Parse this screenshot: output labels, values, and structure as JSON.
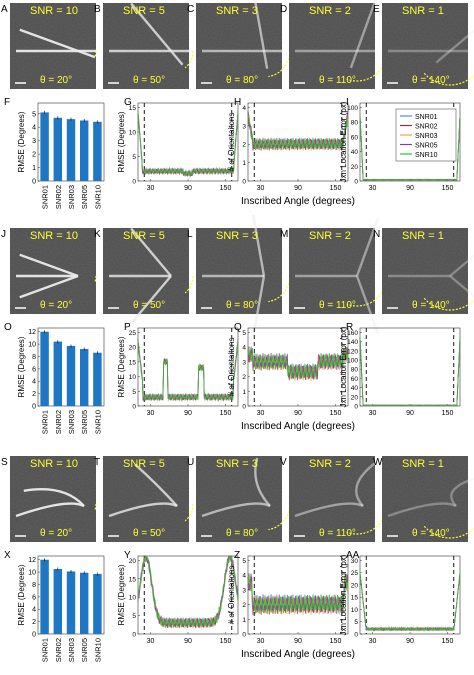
{
  "rows": [
    {
      "panel_letters": [
        "A",
        "B",
        "C",
        "D",
        "E"
      ],
      "snr_labels": [
        "SNR = 10",
        "SNR = 5",
        "SNR = 3",
        "SNR = 2",
        "SNR = 1"
      ],
      "theta_labels": [
        "θ = 20°",
        "θ = 50°",
        "θ = 80°",
        "θ = 110°",
        "θ = 140°"
      ],
      "bar_letter": "F",
      "plot_letters": [
        "G",
        "H",
        "I"
      ],
      "bar_ylabel": "RMSE (Degrees)",
      "bar_yticks": [
        "0",
        "1",
        "2",
        "3",
        "4",
        "5"
      ],
      "bar_ylim": [
        0,
        5.8
      ],
      "bar_values": [
        5.1,
        4.7,
        4.6,
        4.5,
        4.4
      ],
      "show_legend": true
    },
    {
      "panel_letters": [
        "J",
        "K",
        "L",
        "M",
        "N"
      ],
      "snr_labels": [
        "SNR = 10",
        "SNR = 5",
        "SNR = 3",
        "SNR = 2",
        "SNR = 1"
      ],
      "theta_labels": [
        "θ = 20°",
        "θ = 50°",
        "θ = 80°",
        "θ = 110°",
        "θ = 140°"
      ],
      "bar_letter": "O",
      "plot_letters": [
        "P",
        "Q",
        "R"
      ],
      "bar_ylabel": "RMSE (Degrees)",
      "bar_yticks": [
        "0",
        "2",
        "4",
        "6",
        "8",
        "10",
        "12"
      ],
      "bar_ylim": [
        0,
        12.6
      ],
      "bar_values": [
        12.0,
        10.4,
        9.7,
        9.2,
        8.6
      ],
      "show_legend": false
    },
    {
      "panel_letters": [
        "S",
        "T",
        "U",
        "V",
        "W"
      ],
      "snr_labels": [
        "SNR = 10",
        "SNR = 5",
        "SNR = 3",
        "SNR = 2",
        "SNR = 1"
      ],
      "theta_labels": [
        "θ = 20°",
        "θ = 50°",
        "θ = 80°",
        "θ = 110°",
        "θ = 140°"
      ],
      "bar_letter": "X",
      "plot_letters": [
        "Y",
        "Z",
        "AA"
      ],
      "bar_ylabel": "RMSE (Degrees)",
      "bar_yticks": [
        "0",
        "2",
        "4",
        "6",
        "8",
        "10",
        "12"
      ],
      "bar_ylim": [
        0,
        12.6
      ],
      "bar_values": [
        12.0,
        10.5,
        10.1,
        9.9,
        9.7
      ],
      "show_legend": false
    }
  ],
  "bar_categories": [
    "SNR01",
    "SNR02",
    "SNR03",
    "SNR05",
    "SNR10"
  ],
  "line_ylabels": [
    "RMSE (Degrees)",
    "# of Orientaitons",
    "Jxn Location Error (px)"
  ],
  "line_yticks": [
    [
      [
        "0",
        "5",
        "10",
        "15"
      ],
      [
        "0",
        "1",
        "2",
        "3",
        "4"
      ],
      [
        "0",
        "20",
        "40",
        "60",
        "80",
        "100"
      ]
    ],
    [
      [
        "0",
        "5",
        "10",
        "15",
        "20",
        "25"
      ],
      [
        "0",
        "1",
        "2",
        "3",
        "4",
        "5"
      ],
      [
        "0",
        "20",
        "40",
        "60",
        "80",
        "100",
        "120",
        "140",
        "160"
      ]
    ],
    [
      [
        "0",
        "5",
        "10",
        "15",
        "20"
      ],
      [
        "0",
        "1",
        "2",
        "3",
        "4",
        "5"
      ],
      [
        "0",
        "5",
        "10",
        "15",
        "20",
        "25",
        "30"
      ]
    ]
  ],
  "xticks": [
    "30",
    "90",
    "150"
  ],
  "xlabel": "Inscribed Angle (degrees)",
  "legend": [
    "SNR01",
    "SNR02",
    "SNR03",
    "SNR05",
    "SNR10"
  ],
  "colors": {
    "bar": "#1f77c4",
    "image_bg": "#3a3a3a",
    "snr_text": "#ffff33",
    "series": [
      "#4e8fd0",
      "#9b2d3a",
      "#e6a34a",
      "#7a44a0",
      "#28c82e"
    ]
  }
}
